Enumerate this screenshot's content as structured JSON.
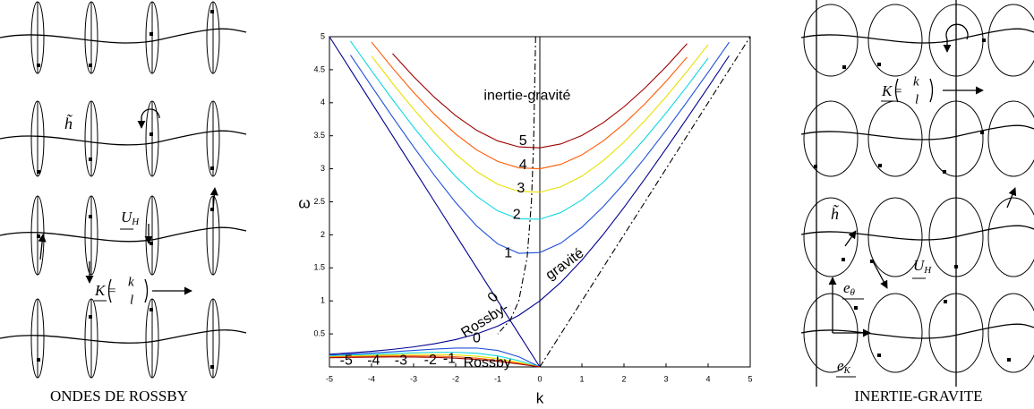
{
  "left_panel": {
    "caption": "ONDES DE ROSSBY",
    "wave_height": "h̃",
    "velocity": {
      "symbol": "U",
      "subscript": "H"
    },
    "wavevector": {
      "symbol": "K",
      "relation": "=",
      "components": [
        "k",
        "l"
      ]
    }
  },
  "right_panel": {
    "caption": "INERTIE-GRAVITE",
    "wave_height": "h̃",
    "velocity": {
      "symbol": "U",
      "subscript": "H"
    },
    "wavevector": {
      "symbol": "K",
      "relation": "=",
      "components": [
        "k",
        "l"
      ]
    },
    "basis": [
      {
        "symbol": "e",
        "subscript": "θ"
      },
      {
        "symbol": "e",
        "subscript": "K"
      }
    ]
  },
  "chart_data": {
    "type": "line",
    "x_label": "k",
    "y_label": "ω",
    "xlim": [
      -5,
      5
    ],
    "ylim": [
      0,
      5
    ],
    "xticks": [
      -5,
      -4,
      -3,
      -2,
      -1,
      0,
      1,
      2,
      3,
      4,
      5
    ],
    "yticks": [
      0.5,
      1,
      1.5,
      2,
      2.5,
      3,
      3.5,
      4,
      4.5,
      5
    ],
    "x": [
      -5,
      -4.5,
      -4,
      -3.5,
      -3,
      -2.5,
      -2,
      -1.5,
      -1,
      -0.5,
      0,
      0.5,
      1,
      1.5,
      2,
      2.5,
      3,
      3.5,
      4,
      4.5,
      5
    ],
    "series": [
      {
        "name": "0",
        "color": "#00008f",
        "style": "solid",
        "values": [
          0.193,
          0.212,
          0.236,
          0.266,
          0.303,
          0.351,
          0.414,
          0.5,
          0.618,
          0.781,
          1,
          1.281,
          1.618,
          2,
          2.414,
          2.851,
          3.303,
          3.766,
          4.236,
          4.712,
          null
        ]
      },
      {
        "name": "0",
        "color": "#00008f",
        "style": "solid",
        "values": [
          5,
          4.5,
          4,
          3.5,
          3,
          2.5,
          2,
          1.5,
          1,
          0.5,
          0,
          null,
          null,
          null,
          null,
          null,
          null,
          null,
          null,
          null,
          null
        ]
      },
      {
        "name": "1",
        "color": "#1f4fd8",
        "style": "solid",
        "values": [
          null,
          4.722,
          4.25,
          3.785,
          3.332,
          2.896,
          2.49,
          2.133,
          1.862,
          1.72,
          1.732,
          1.875,
          2.115,
          2.422,
          2.778,
          3.168,
          3.583,
          4.015,
          4.461,
          4.916,
          null
        ]
      },
      {
        "name": "2",
        "color": "#10d8e0",
        "style": "solid",
        "values": [
          null,
          4.933,
          4.484,
          4.048,
          3.63,
          3.237,
          2.882,
          2.583,
          2.362,
          2.243,
          2.236,
          2.338,
          2.529,
          2.791,
          3.105,
          3.46,
          3.845,
          4.251,
          4.675,
          null,
          null
        ]
      },
      {
        "name": "3",
        "color": "#e8e000",
        "style": "solid",
        "values": [
          null,
          null,
          4.706,
          4.294,
          3.903,
          3.542,
          3.222,
          2.957,
          2.764,
          2.658,
          2.646,
          2.727,
          2.889,
          3.119,
          3.404,
          3.731,
          4.091,
          4.476,
          4.881,
          null,
          null
        ]
      },
      {
        "name": "4",
        "color": "#ff5a00",
        "style": "solid",
        "values": [
          null,
          null,
          4.918,
          4.525,
          4.157,
          3.82,
          3.526,
          3.285,
          3.111,
          3.014,
          3,
          3.068,
          3.211,
          3.419,
          3.68,
          3.985,
          4.324,
          4.69,
          null,
          null,
          null
        ]
      },
      {
        "name": "5",
        "color": "#9c0000",
        "style": "solid",
        "values": [
          null,
          null,
          null,
          4.745,
          4.395,
          4.079,
          3.805,
          3.582,
          3.422,
          3.332,
          3.317,
          3.376,
          3.505,
          3.695,
          3.938,
          4.224,
          4.545,
          4.895,
          null,
          null,
          null
        ]
      },
      {
        "name": "-1",
        "color": "#1f4fd8",
        "style": "solid",
        "values": [
          0.179,
          0.194,
          0.211,
          0.23,
          0.25,
          0.27,
          0.286,
          0.286,
          0.25,
          0.154,
          0,
          null,
          null,
          null,
          null,
          null,
          null,
          null,
          null,
          null,
          null
        ]
      },
      {
        "name": "-2",
        "color": "#10d8e0",
        "style": "solid",
        "values": [
          0.167,
          0.178,
          0.19,
          0.203,
          0.214,
          0.222,
          0.222,
          0.207,
          0.167,
          0.095,
          0,
          null,
          null,
          null,
          null,
          null,
          null,
          null,
          null,
          null,
          null
        ]
      },
      {
        "name": "-3",
        "color": "#e8e000",
        "style": "solid",
        "values": [
          0.156,
          0.165,
          0.174,
          0.182,
          0.188,
          0.189,
          0.182,
          0.162,
          0.125,
          0.069,
          0,
          null,
          null,
          null,
          null,
          null,
          null,
          null,
          null,
          null,
          null
        ]
      },
      {
        "name": "-4",
        "color": "#ff5a00",
        "style": "solid",
        "values": [
          0.147,
          0.154,
          0.16,
          0.165,
          0.167,
          0.164,
          0.154,
          0.133,
          0.1,
          0.054,
          0,
          null,
          null,
          null,
          null,
          null,
          null,
          null,
          null,
          null,
          null
        ]
      },
      {
        "name": "-5",
        "color": "#9c0000",
        "style": "solid",
        "values": [
          0.139,
          0.144,
          0.148,
          0.151,
          0.15,
          0.145,
          0.133,
          0.113,
          0.083,
          0.044,
          0,
          null,
          null,
          null,
          null,
          null,
          null,
          null,
          null,
          null,
          null
        ]
      },
      {
        "color": "#000000",
        "style": "dashdot",
        "x": [
          -0.1,
          -0.15,
          -0.2,
          -0.3,
          -0.5,
          -0.7,
          -1
        ],
        "values": [
          5,
          3.333,
          2.5,
          1.667,
          1,
          0.714,
          0.5
        ]
      },
      {
        "color": "#000000",
        "style": "dashdot",
        "values": [
          null,
          null,
          null,
          null,
          null,
          null,
          null,
          null,
          null,
          null,
          0,
          0.5,
          1,
          1.5,
          2,
          2.5,
          3,
          3.5,
          4,
          4.5,
          5
        ]
      }
    ],
    "annotations": [
      "inertie-gravité",
      "Rossby-",
      "gravité",
      "Rossby"
    ]
  }
}
